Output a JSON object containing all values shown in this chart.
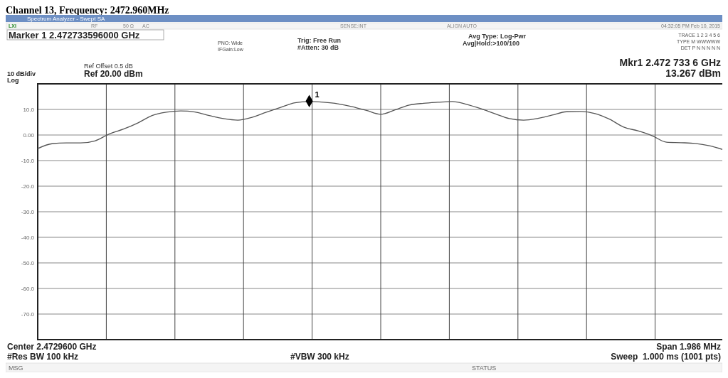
{
  "chart_data": {
    "type": "line",
    "title": "Channel 13, Frequency: 2472.960MHz",
    "categories": [
      null,
      null,
      null,
      null,
      null,
      null,
      null,
      null,
      null,
      null,
      null,
      null,
      null,
      null,
      null,
      null,
      null,
      null,
      null,
      null,
      null,
      null,
      null,
      null,
      null,
      null,
      null,
      null,
      null,
      null,
      null,
      null,
      null,
      null,
      null,
      null,
      null,
      null,
      null,
      null,
      null,
      null,
      null,
      null,
      null,
      null,
      null,
      null,
      null
    ],
    "series": [
      {
        "color": "#555555",
        "values": [
          -5.3,
          -3.4,
          -3.1,
          -3.1,
          -2.3,
          0.4,
          2.3,
          4.7,
          7.6,
          8.9,
          9.4,
          9.0,
          7.6,
          6.4,
          5.8,
          6.9,
          8.9,
          10.8,
          12.6,
          13.1,
          12.8,
          12.2,
          11.1,
          9.6,
          8.1,
          9.8,
          11.7,
          12.4,
          12.8,
          13.1,
          12.0,
          10.3,
          8.3,
          6.4,
          5.8,
          6.5,
          7.8,
          9.1,
          9.2,
          8.4,
          6.2,
          3.1,
          1.6,
          -0.3,
          -2.8,
          -3.0,
          -3.3,
          -4.2,
          -5.8
        ]
      },
      {
        "type": "scatter",
        "name": "1",
        "marker": "diamond",
        "color": "#000000",
        "values": [
          null,
          null,
          null,
          null,
          null,
          null,
          null,
          null,
          null,
          null,
          null,
          null,
          null,
          null,
          null,
          null,
          null,
          null,
          null,
          13.267,
          null,
          null,
          null,
          null,
          null,
          null,
          null,
          null,
          null,
          null,
          null,
          null,
          null,
          null,
          null,
          null,
          null,
          null,
          null,
          null,
          null,
          null,
          null,
          null,
          null,
          null,
          null,
          null,
          null
        ]
      }
    ],
    "ylim": [
      -80,
      20
    ],
    "yticks": [
      {
        "value": 20,
        "label": null
      },
      {
        "value": 10,
        "label": "10.0"
      },
      {
        "value": 0,
        "label": "0.00"
      },
      {
        "value": -10,
        "label": "-10.0"
      },
      {
        "value": -20,
        "label": "-20.0"
      },
      {
        "value": -30,
        "label": "-30.0"
      },
      {
        "value": -40,
        "label": "-40.0"
      },
      {
        "value": -50,
        "label": "-50.0"
      },
      {
        "value": -60,
        "label": "-60.0"
      },
      {
        "value": -70,
        "label": "-70.0"
      }
    ],
    "grid": true,
    "marker": "none",
    "line_style": "solid",
    "legend": false,
    "annotations": [
      "Spectrum Analyzer - Swept SA",
      "LXI",
      "RF",
      "50 Ω",
      "AC",
      "SENSE:INT",
      "ALIGN AUTO",
      "04:32:05 PM Feb 10, 2015",
      "Marker 1 2.472733596000 GHz",
      "PNO: Wide",
      "IFGain:Low",
      "Trig: Free Run",
      "#Atten: 30 dB",
      "Avg Type: Log-Pwr",
      "Avg|Hold:>100/100",
      "TRACE 1 2 3 4 5 6",
      "TYPE M WWWWW",
      "DET P N N N N N",
      "Mkr1 2.472 733 6 GHz",
      "13.267 dBm",
      "Ref Offset 0.5 dB",
      "Ref 20.00 dBm",
      "10 dB/div",
      "Log",
      "Center 2.4729600 GHz",
      "#Res BW 100 kHz",
      "#VBW 300 kHz",
      "Span 1.986 MHz",
      "Sweep  1.000 ms (1001 pts)",
      "MSG",
      "STATUS"
    ]
  }
}
